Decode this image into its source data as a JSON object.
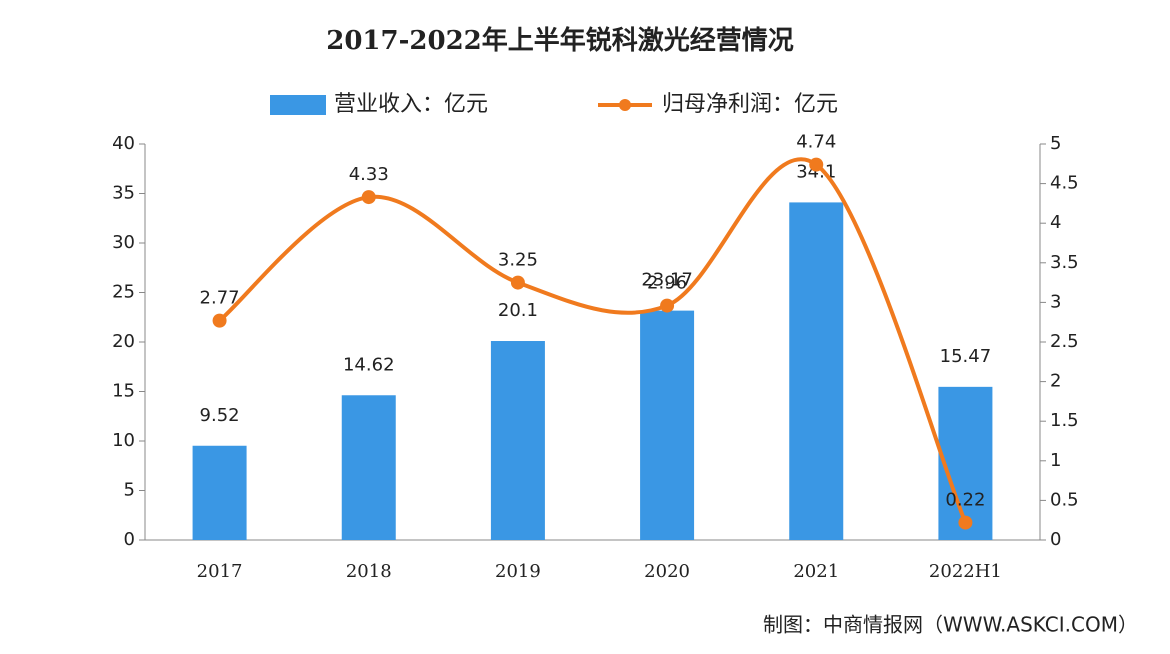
{
  "chart_data": {
    "type": "bar-line",
    "title": "2017-2022年上半年锐科激光经营情况",
    "categories": [
      "2017",
      "2018",
      "2019",
      "2020",
      "2021",
      "2022H1"
    ],
    "series": [
      {
        "name": "营业收入：亿元",
        "type": "bar",
        "color": "#3a97e4",
        "values": [
          9.52,
          14.62,
          20.1,
          23.17,
          34.1,
          15.47
        ]
      },
      {
        "name": "归母净利润：亿元",
        "type": "line",
        "axis": "y2",
        "color": "#f07a1e",
        "values": [
          2.77,
          4.33,
          3.25,
          2.96,
          4.74,
          0.22
        ]
      }
    ],
    "ylim": [
      0,
      40
    ],
    "yticks": [
      0,
      5,
      10,
      15,
      20,
      25,
      30,
      35,
      40
    ],
    "y2lim": [
      0,
      5
    ],
    "y2ticks": [
      0,
      0.5,
      1,
      1.5,
      2,
      2.5,
      3,
      3.5,
      4,
      4.5,
      5
    ],
    "source": "制图：中商情报网（WWW.ASKCI.COM）"
  }
}
